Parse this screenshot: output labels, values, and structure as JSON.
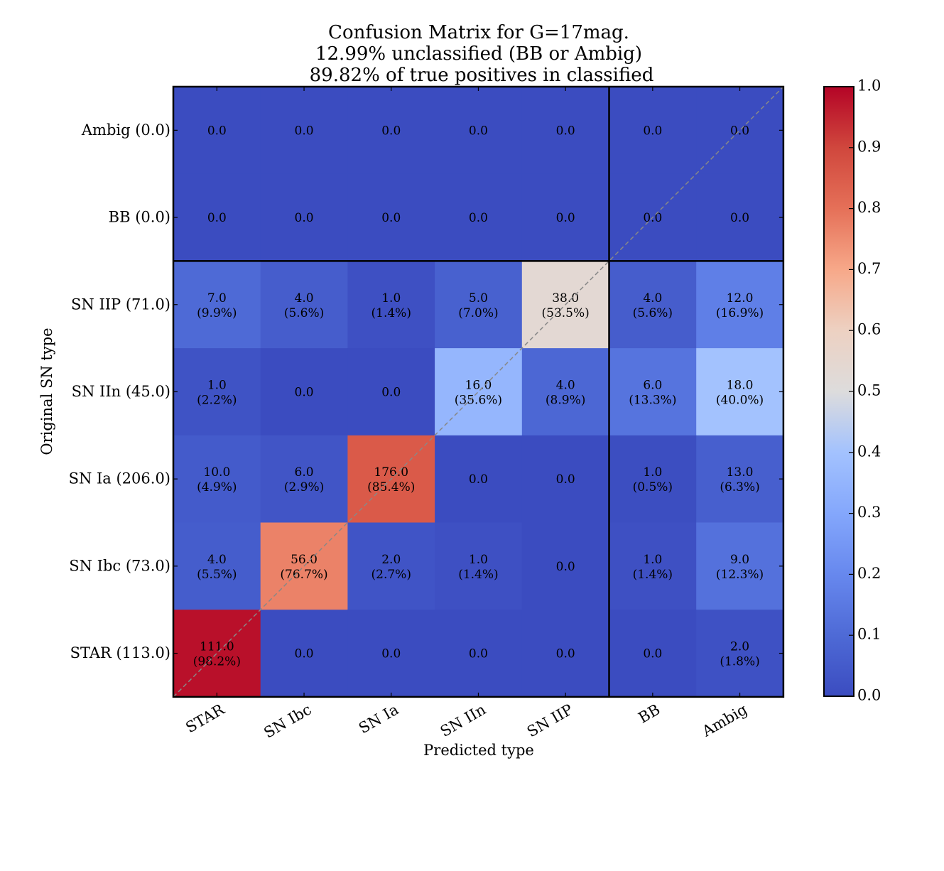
{
  "chart_data": {
    "type": "heatmap",
    "title": [
      "Confusion Matrix for G=17mag.",
      "12.99% unclassified (BB or Ambig)",
      "89.82% of true positives in classified"
    ],
    "xlabel": "Predicted type",
    "ylabel": "Original SN type",
    "x_categories": [
      "STAR",
      "SN Ibc",
      "SN Ia",
      "SN IIn",
      "SN IIP",
      "BB",
      "Ambig"
    ],
    "y_categories": [
      "Ambig (0.0)",
      "BB (0.0)",
      "SN IIP (71.0)",
      "SN IIn (45.0)",
      "SN Ia (206.0)",
      "SN Ibc (73.0)",
      "STAR (113.0)"
    ],
    "values": [
      [
        0.0,
        0.0,
        0.0,
        0.0,
        0.0,
        0.0,
        0.0
      ],
      [
        0.0,
        0.0,
        0.0,
        0.0,
        0.0,
        0.0,
        0.0
      ],
      [
        7.0,
        4.0,
        1.0,
        5.0,
        38.0,
        4.0,
        12.0
      ],
      [
        1.0,
        0.0,
        0.0,
        16.0,
        4.0,
        6.0,
        18.0
      ],
      [
        10.0,
        6.0,
        176.0,
        0.0,
        0.0,
        1.0,
        13.0
      ],
      [
        4.0,
        56.0,
        2.0,
        1.0,
        0.0,
        1.0,
        9.0
      ],
      [
        111.0,
        0.0,
        0.0,
        0.0,
        0.0,
        0.0,
        2.0
      ]
    ],
    "labels": [
      [
        "0.0",
        "0.0",
        "0.0",
        "0.0",
        "0.0",
        "0.0",
        "0.0"
      ],
      [
        "0.0",
        "0.0",
        "0.0",
        "0.0",
        "0.0",
        "0.0",
        "0.0"
      ],
      [
        "7.0\n(9.9%)",
        "4.0\n(5.6%)",
        "1.0\n(1.4%)",
        "5.0\n(7.0%)",
        "38.0\n(53.5%)",
        "4.0\n(5.6%)",
        "12.0\n(16.9%)"
      ],
      [
        "1.0\n(2.2%)",
        "0.0",
        "0.0",
        "16.0\n(35.6%)",
        "4.0\n(8.9%)",
        "6.0\n(13.3%)",
        "18.0\n(40.0%)"
      ],
      [
        "10.0\n(4.9%)",
        "6.0\n(2.9%)",
        "176.0\n(85.4%)",
        "0.0",
        "0.0",
        "1.0\n(0.5%)",
        "13.0\n(6.3%)"
      ],
      [
        "4.0\n(5.5%)",
        "56.0\n(76.7%)",
        "2.0\n(2.7%)",
        "1.0\n(1.4%)",
        "0.0",
        "1.0\n(1.4%)",
        "9.0\n(12.3%)"
      ],
      [
        "111.0\n(98.2%)",
        "0.0",
        "0.0",
        "0.0",
        "0.0",
        "0.0",
        "2.0\n(1.8%)"
      ]
    ],
    "fractions": [
      [
        0,
        0,
        0,
        0,
        0,
        0,
        0
      ],
      [
        0,
        0,
        0,
        0,
        0,
        0,
        0
      ],
      [
        0.099,
        0.056,
        0.014,
        0.07,
        0.535,
        0.056,
        0.169
      ],
      [
        0.022,
        0,
        0,
        0.356,
        0.089,
        0.133,
        0.4
      ],
      [
        0.049,
        0.029,
        0.854,
        0,
        0,
        0.005,
        0.063
      ],
      [
        0.055,
        0.767,
        0.027,
        0.014,
        0,
        0.014,
        0.123
      ],
      [
        0.982,
        0,
        0,
        0,
        0,
        0,
        0.018
      ]
    ],
    "colormap": "coolwarm",
    "colorbar_range": [
      0.0,
      1.0
    ],
    "colorbar_ticks": [
      "0.0",
      "0.1",
      "0.2",
      "0.3",
      "0.4",
      "0.5",
      "0.6",
      "0.7",
      "0.8",
      "0.9",
      "1.0"
    ],
    "diagonal_line": true,
    "separator_after_col": "SN IIP",
    "separator_after_row": "BB"
  }
}
